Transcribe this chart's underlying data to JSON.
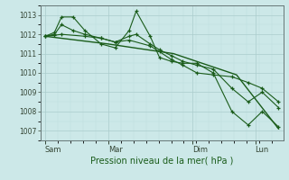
{
  "background_color": "#cce8e8",
  "grid_color_major": "#aacccc",
  "grid_color_minor": "#bbdddd",
  "line_color": "#1a5c1a",
  "xlabel": "Pression niveau de la mer( hPa )",
  "ylim": [
    1006.5,
    1013.5
  ],
  "yticks": [
    1007,
    1008,
    1009,
    1010,
    1011,
    1012,
    1013
  ],
  "xtick_positions": [
    0.0,
    0.27,
    0.63,
    0.9
  ],
  "xtick_labels": [
    "Sam",
    "Mar",
    "Dim",
    "Lun"
  ],
  "line1_x": [
    0.0,
    0.04,
    0.07,
    0.12,
    0.17,
    0.24,
    0.3,
    0.36,
    0.39,
    0.45,
    0.49,
    0.54,
    0.59,
    0.65,
    0.72,
    0.8,
    0.87,
    0.93,
    1.0
  ],
  "line1_y": [
    1011.9,
    1012.1,
    1012.9,
    1012.9,
    1012.2,
    1011.5,
    1011.3,
    1012.2,
    1013.2,
    1011.9,
    1010.8,
    1010.6,
    1010.5,
    1010.5,
    1010.0,
    1008.0,
    1007.3,
    1008.0,
    1007.2
  ],
  "line2_x": [
    0.0,
    0.04,
    0.07,
    0.12,
    0.17,
    0.24,
    0.3,
    0.36,
    0.39,
    0.45,
    0.49,
    0.54,
    0.59,
    0.65,
    0.72,
    0.8,
    0.87,
    0.93,
    1.0
  ],
  "line2_y": [
    1011.9,
    1012.0,
    1012.5,
    1012.2,
    1012.0,
    1011.8,
    1011.6,
    1011.9,
    1012.0,
    1011.5,
    1011.2,
    1010.9,
    1010.6,
    1010.4,
    1010.2,
    1009.2,
    1008.5,
    1009.0,
    1008.2
  ],
  "line3_x": [
    0.0,
    0.04,
    0.07,
    0.17,
    0.24,
    0.3,
    0.36,
    0.45,
    0.49,
    0.54,
    0.59,
    0.65,
    0.72,
    0.8,
    0.87,
    0.93,
    1.0
  ],
  "line3_y": [
    1011.9,
    1011.95,
    1012.0,
    1011.9,
    1011.8,
    1011.6,
    1011.7,
    1011.4,
    1011.1,
    1010.7,
    1010.4,
    1010.0,
    1009.9,
    1009.8,
    1009.5,
    1009.2,
    1008.5
  ],
  "line4_x": [
    0.0,
    0.27,
    0.55,
    0.82,
    1.0
  ],
  "line4_y": [
    1011.9,
    1011.5,
    1011.0,
    1009.9,
    1007.1
  ]
}
